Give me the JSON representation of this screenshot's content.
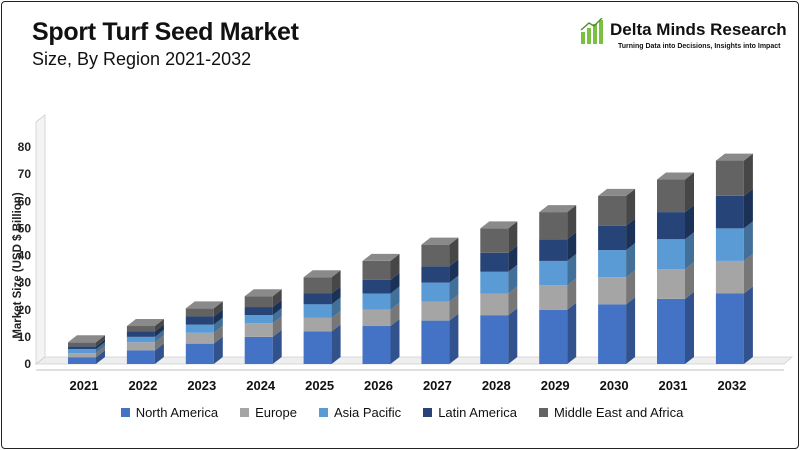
{
  "header": {
    "title": "Sport Turf Seed Market",
    "subtitle": "Size, By Region 2021-2032"
  },
  "logo": {
    "name": "Delta Minds Research",
    "tagline": "Turning Data into Decisions, Insights into Impact",
    "icon": "bar-growth-icon",
    "color": "#7ac143"
  },
  "chart_data": {
    "type": "bar",
    "stacked": true,
    "style": "3d",
    "ylabel": "Market Size (USD $ Billion)",
    "xlabel": "",
    "ylim": [
      0,
      80
    ],
    "yticks": [
      0,
      10,
      20,
      30,
      40,
      50,
      60,
      70,
      80
    ],
    "legend_position": "bottom",
    "grid": false,
    "categories": [
      "2021",
      "2022",
      "2023",
      "2024",
      "2025",
      "2026",
      "2027",
      "2028",
      "2029",
      "2030",
      "2031",
      "2032"
    ],
    "series": [
      {
        "name": "North America",
        "color": "#4472c4",
        "values": [
          2.5,
          5,
          7.5,
          10,
          12,
          14,
          16,
          18,
          20,
          22,
          24,
          26
        ]
      },
      {
        "name": "Europe",
        "color": "#a5a5a5",
        "values": [
          1.5,
          3,
          4,
          5,
          5,
          6,
          7,
          8,
          9,
          10,
          11,
          12
        ]
      },
      {
        "name": "Asia Pacific",
        "color": "#5b9bd5",
        "values": [
          1.5,
          2,
          3,
          3,
          5,
          6,
          7,
          8,
          9,
          10,
          11,
          12
        ]
      },
      {
        "name": "Latin America",
        "color": "#264478",
        "values": [
          1,
          2,
          3,
          3,
          4,
          5,
          6,
          7,
          8,
          9,
          10,
          12
        ]
      },
      {
        "name": "Middle East and Africa",
        "color": "#636363",
        "values": [
          1.5,
          2,
          3,
          4,
          6,
          7,
          8,
          9,
          10,
          11,
          12,
          13
        ]
      }
    ]
  }
}
